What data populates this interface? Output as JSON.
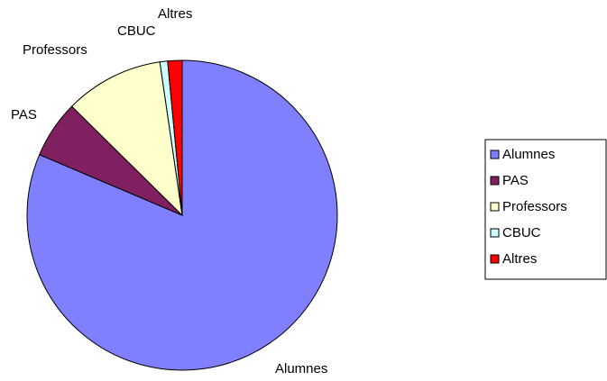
{
  "chart_data": {
    "type": "pie",
    "categories": [
      "Alumnes",
      "PAS",
      "Professors",
      "CBUC",
      "Altres"
    ],
    "values": [
      81.4,
      6,
      10.3,
      0.8,
      1.5
    ],
    "colors": [
      "#8080ff",
      "#802060",
      "#ffffcc",
      "#ccffff",
      "#ff0000"
    ],
    "legend": "right"
  }
}
